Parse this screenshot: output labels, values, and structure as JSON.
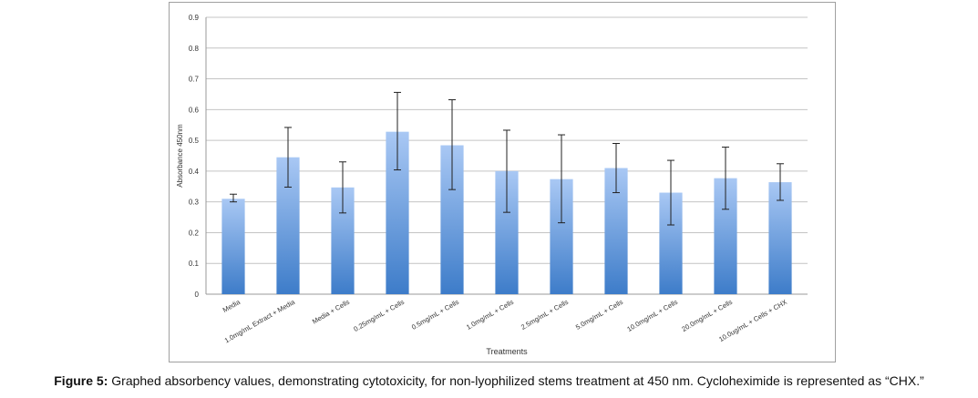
{
  "chart_data": {
    "type": "bar",
    "title": "",
    "xlabel": "Treatments",
    "ylabel": "Absorbance 450nm",
    "ylim": [
      0,
      0.9
    ],
    "yticks": [
      "0",
      "0.1",
      "0.2",
      "0.3",
      "0.4",
      "0.5",
      "0.6",
      "0.7",
      "0.8",
      "0.9"
    ],
    "grid": true,
    "legend": "none",
    "bar_color_top": "#a9c8f4",
    "bar_color_bottom": "#3d7cc9",
    "categories": [
      "Media",
      "1.0mg/mL Extract + Media",
      "Media + Cells",
      "0.25mg/mL + Cells",
      "0.5mg/mL + Cells",
      "1.0mg/mL + Cells",
      "2.5mg/mL + Cells",
      "5.0mg/mL + Cells",
      "10.0mg/mL + Cells",
      "20.0mg/mL + Cells",
      "10.0ug/mL + Cells + CHX"
    ],
    "values": [
      0.31,
      0.445,
      0.347,
      0.528,
      0.484,
      0.4,
      0.374,
      0.41,
      0.33,
      0.377,
      0.364
    ],
    "error_high": [
      0.325,
      0.542,
      0.43,
      0.656,
      0.632,
      0.533,
      0.518,
      0.49,
      0.435,
      0.478,
      0.424
    ],
    "error_low": [
      0.3,
      0.348,
      0.264,
      0.404,
      0.34,
      0.266,
      0.232,
      0.33,
      0.225,
      0.276,
      0.305
    ]
  },
  "caption": {
    "label": "Figure 5:",
    "text": " Graphed absorbency values, demonstrating cytotoxicity, for non-lyophilized stems treatment at 450 nm. Cycloheximide is represented as “CHX.”"
  }
}
